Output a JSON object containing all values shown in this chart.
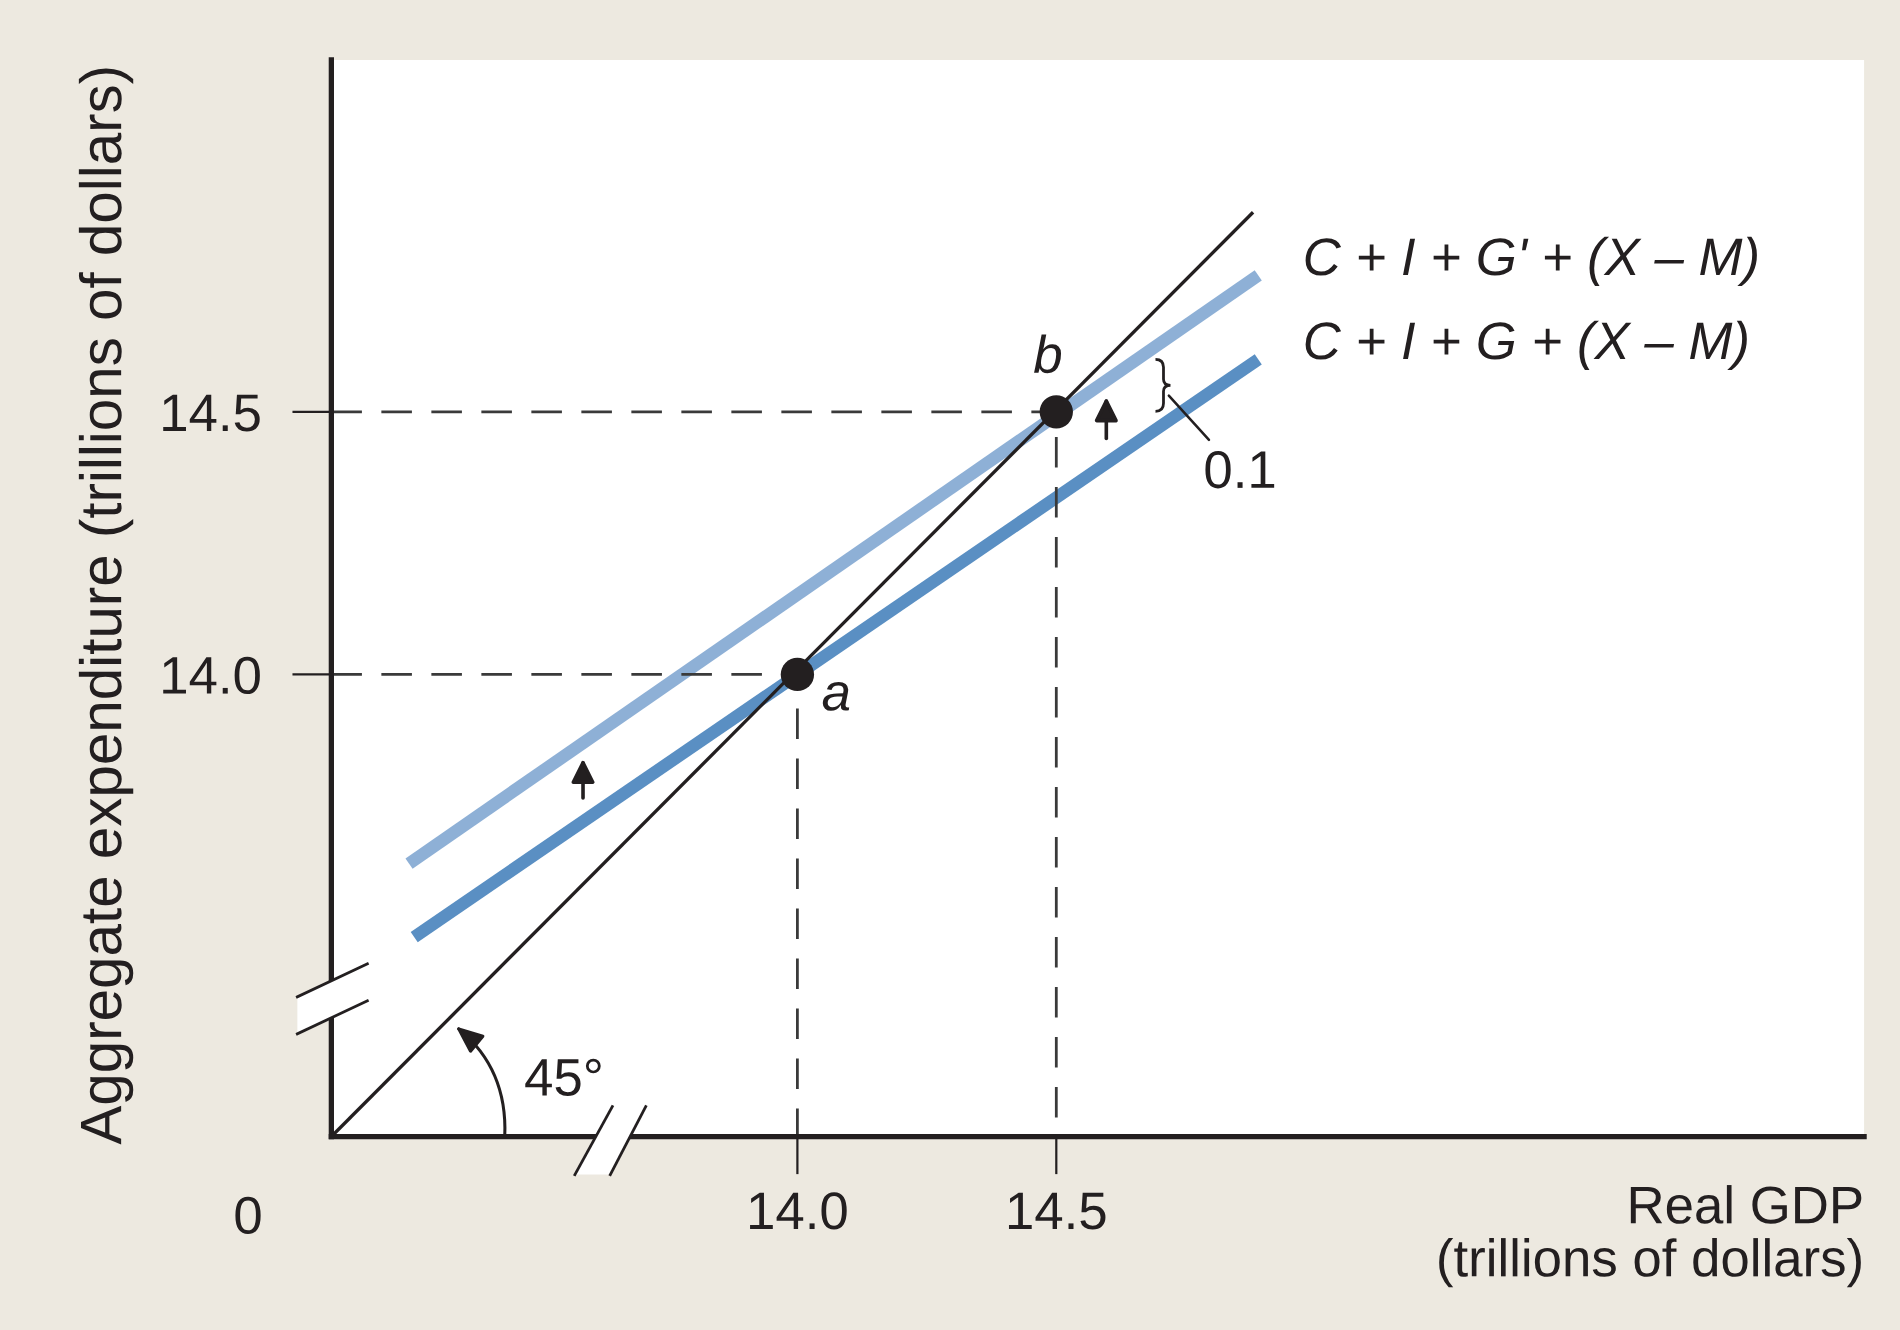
{
  "chart_data": {
    "type": "line",
    "xlabel": "Real GDP\n(trillions of dollars)",
    "ylabel": "Aggregate expenditure (trillions of dollars)",
    "xlim": [
      13.1,
      16.06
    ],
    "ylim": [
      13.12,
      15.17
    ],
    "xticks": [
      {
        "value": 14,
        "label": "14.0"
      },
      14.5
    ],
    "yticks": [
      {
        "value": 14,
        "label": "14.0"
      },
      14.5
    ],
    "grid": false,
    "legend": false,
    "series": [
      {
        "color": "#231f20",
        "x": [
          13.1,
          14.88
        ],
        "values": [
          13.12,
          14.88
        ]
      },
      {
        "name": "C + I + G + (X – M)",
        "color": "#5a8fc3",
        "x": [
          13.26,
          14.89
        ],
        "values": [
          13.5,
          14.6
        ]
      },
      {
        "name": "C + I + G' + (X – M)",
        "color": "#8eb0d6",
        "x": [
          13.25,
          14.89
        ],
        "values": [
          13.64,
          14.76
        ]
      },
      {
        "line_style": "dashed",
        "color": "#3a3a3a",
        "x": [
          13.1,
          14.0,
          14.0
        ],
        "values": [
          14.0,
          14.0,
          13.12
        ]
      },
      {
        "line_style": "dashed",
        "color": "#3a3a3a",
        "x": [
          13.1,
          14.5,
          14.5
        ],
        "values": [
          14.5,
          14.5,
          13.12
        ]
      },
      {
        "type": "scatter",
        "marker": "circle",
        "color": "#231f20",
        "x": [
          14.0,
          14.5
        ],
        "values": [
          14.0,
          14.5
        ]
      }
    ],
    "annotations": [
      {
        "text": "a",
        "x": 14.0,
        "y": 14.0
      },
      {
        "text": "b",
        "x": 14.5,
        "y": 14.5
      },
      {
        "text": "45°",
        "x": 13.34,
        "y": 13.33
      },
      "0.1",
      "0"
    ]
  }
}
